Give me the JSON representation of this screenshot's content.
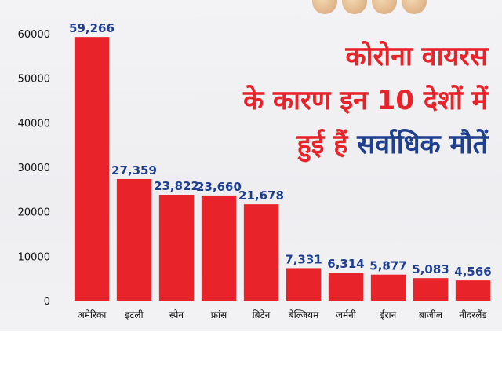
{
  "headline": {
    "line1": "कोरोना वायरस",
    "line2": "के कारण इन 10 देशों में",
    "line3_prefix": "हुई हैं",
    "line3_highlight": "सर्वाधिक मौतें"
  },
  "colors": {
    "bar": "#e8232a",
    "value_label": "#1f3f8f",
    "headline": "#e8232a",
    "headline_highlight": "#1f3f8f",
    "axis_text": "#111111"
  },
  "chart_data": {
    "type": "bar",
    "categories": [
      "अमेरिका",
      "इटली",
      "स्पेन",
      "फ्रांस",
      "ब्रिटेन",
      "बेल्जियम",
      "जर्मनी",
      "ईरान",
      "ब्राजील",
      "नीदरलैंड"
    ],
    "values": [
      59266,
      27359,
      23822,
      23660,
      21678,
      7331,
      6314,
      5877,
      5083,
      4566
    ],
    "value_labels": [
      "59,266",
      "27,359",
      "23,822",
      "23,660",
      "21,678",
      "7,331",
      "6,314",
      "5,877",
      "5,083",
      "4,566"
    ],
    "ylim": [
      0,
      60000
    ],
    "yticks": [
      0,
      10000,
      20000,
      30000,
      40000,
      50000,
      60000
    ],
    "title": "",
    "xlabel": "",
    "ylabel": "",
    "grid": false
  }
}
